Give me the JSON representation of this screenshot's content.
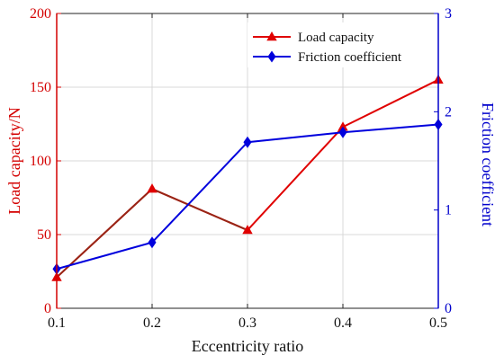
{
  "chart_data": {
    "type": "line",
    "x": [
      0.1,
      0.2,
      0.3,
      0.4,
      0.5
    ],
    "x_ticks": [
      "0.1",
      "0.2",
      "0.3",
      "0.4",
      "0.5"
    ],
    "xlabel": "Eccentricity ratio",
    "xlim": [
      0.1,
      0.5
    ],
    "y_left": {
      "label": "Load capacity/N",
      "lim": [
        0,
        200
      ],
      "ticks": [
        0,
        50,
        100,
        150,
        200
      ],
      "color": "#d40000"
    },
    "y_right": {
      "label": "Friction coefficient",
      "lim": [
        0,
        3
      ],
      "ticks": [
        0,
        1,
        2,
        3
      ],
      "color": "#0000cc"
    },
    "grid": true,
    "legend": "top-right",
    "series": [
      {
        "name": "Load capacity",
        "axis": "left",
        "color": "#e00000",
        "marker": "triangle",
        "values": [
          21,
          81,
          53,
          123,
          155
        ]
      },
      {
        "name": "Friction coefficient",
        "axis": "right",
        "color": "#0000dd",
        "marker": "diamond",
        "values": [
          0.4,
          0.67,
          1.69,
          1.79,
          1.87
        ]
      }
    ]
  }
}
